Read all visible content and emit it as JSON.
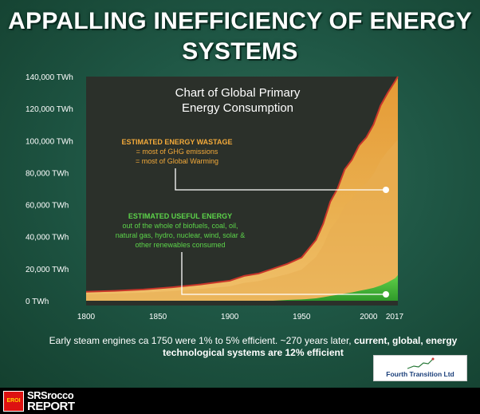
{
  "title_line1": "APPALLING INEFFICIENCY OF ENERGY",
  "title_line2": "SYSTEMS",
  "chart_data": {
    "type": "area",
    "title_line1": "Chart of Global Primary",
    "title_line2": "Energy Consumption",
    "y_unit": "TWh",
    "ylim": [
      0,
      140000
    ],
    "xlim": [
      1800,
      2017
    ],
    "y_ticks": [
      "0 TWh",
      "20,000 TWh",
      "40,000 TWh",
      "60,000 TWh",
      "80,000 TWh",
      "100,000 TWh",
      "120,000 TWh",
      "140,000 TWh"
    ],
    "y_tick_values": [
      0,
      20000,
      40000,
      60000,
      80000,
      100000,
      120000,
      140000
    ],
    "x_ticks": [
      "1800",
      "1850",
      "1900",
      "1950",
      "2000",
      "2017"
    ],
    "x_tick_values": [
      1800,
      1850,
      1900,
      1950,
      2000,
      2017
    ],
    "x": [
      1800,
      1820,
      1840,
      1860,
      1880,
      1900,
      1910,
      1920,
      1930,
      1940,
      1950,
      1960,
      1965,
      1970,
      1975,
      1980,
      1985,
      1990,
      1995,
      2000,
      2005,
      2010,
      2015,
      2017
    ],
    "series": [
      {
        "name": "Total primary energy",
        "values": [
          5600,
          6200,
          7000,
          8400,
          10200,
          12500,
          15500,
          17000,
          20000,
          23000,
          27000,
          38000,
          48000,
          62000,
          70000,
          82000,
          88000,
          97000,
          102000,
          110000,
          122000,
          130000,
          137000,
          140000
        ]
      },
      {
        "name": "Estimated useful energy",
        "values": [
          0,
          0,
          0,
          0,
          0,
          0,
          0,
          0,
          0,
          500,
          800,
          1500,
          2200,
          3000,
          3700,
          4500,
          5200,
          6200,
          7000,
          8000,
          9500,
          11500,
          14000,
          16000
        ]
      }
    ],
    "annotations": {
      "wastage_title": "ESTIMATED ENERGY WASTAGE",
      "wastage_line1": "= most of GHG emissions",
      "wastage_line2": "= most of Global Warming",
      "useful_title": "ESTIMATED USEFUL ENERGY",
      "useful_line1": "out of the whole of biofuels, coal, oil,",
      "useful_line2": "natural gas, hydro, nuclear, wind, solar &",
      "useful_line3": "other renewables consumed"
    },
    "colors": {
      "wastage": "#e9a640",
      "useful": "#4cbf3f",
      "outline": "#c8362a",
      "plot_bg": "#2a2f28"
    }
  },
  "footnote": {
    "line1_plain": "Early steam engines ca 1750 were 1% to 5% efficient. ~270 years later, ",
    "line1_bold": "current, global, energy",
    "line2_bold": "technological systems are 12% efficient"
  },
  "badge_text": "Fourth Transition Ltd",
  "brand": {
    "square_text": "EROI",
    "line1": "SRSrocco",
    "line2": "REPORT"
  }
}
